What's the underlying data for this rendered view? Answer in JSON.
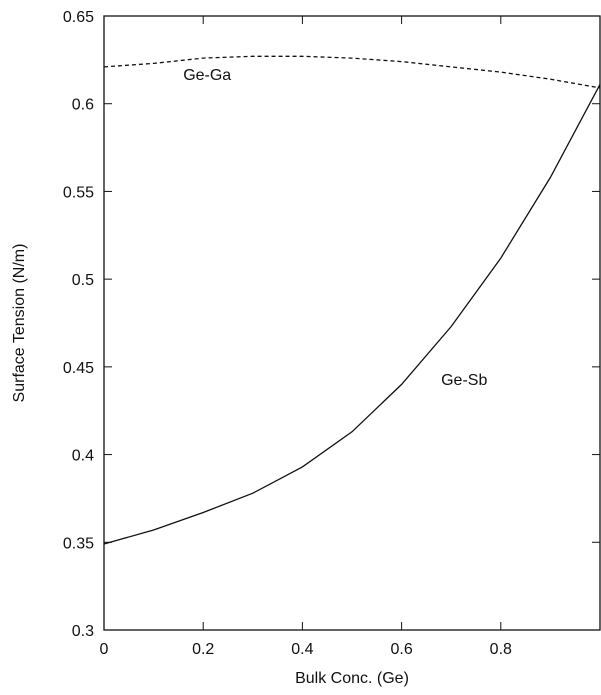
{
  "chart_data": {
    "type": "line",
    "title": "",
    "xlabel": "Bulk Conc. (Ge)",
    "ylabel": "Surface Tension (N/m)",
    "xlim": [
      0,
      1
    ],
    "ylim": [
      0.3,
      0.65
    ],
    "xticks": [
      0,
      0.2,
      0.4,
      0.6,
      0.8
    ],
    "xtick_labels": [
      "0",
      "0.2",
      "0.4",
      "0.6",
      "0.8"
    ],
    "yticks": [
      0.3,
      0.35,
      0.4,
      0.45,
      0.5,
      0.55,
      0.6,
      0.65
    ],
    "ytick_labels": [
      "0.3",
      "0.35",
      "0.4",
      "0.45",
      "0.5",
      "0.55",
      "0.6",
      "0.65"
    ],
    "grid": false,
    "series": [
      {
        "name": "Ge-Ga",
        "style": "dashed",
        "label_at": [
          0.2,
          0.617
        ],
        "x": [
          0,
          0.1,
          0.2,
          0.3,
          0.4,
          0.5,
          0.6,
          0.7,
          0.8,
          0.9,
          1.0
        ],
        "y": [
          0.621,
          0.623,
          0.626,
          0.627,
          0.627,
          0.626,
          0.624,
          0.621,
          0.618,
          0.614,
          0.609
        ]
      },
      {
        "name": "Ge-Sb",
        "style": "solid",
        "label_at": [
          0.72,
          0.443
        ],
        "x": [
          0,
          0.1,
          0.2,
          0.3,
          0.4,
          0.5,
          0.6,
          0.7,
          0.8,
          0.9,
          1.0
        ],
        "y": [
          0.349,
          0.357,
          0.367,
          0.378,
          0.393,
          0.413,
          0.44,
          0.473,
          0.512,
          0.558,
          0.611
        ]
      }
    ]
  }
}
